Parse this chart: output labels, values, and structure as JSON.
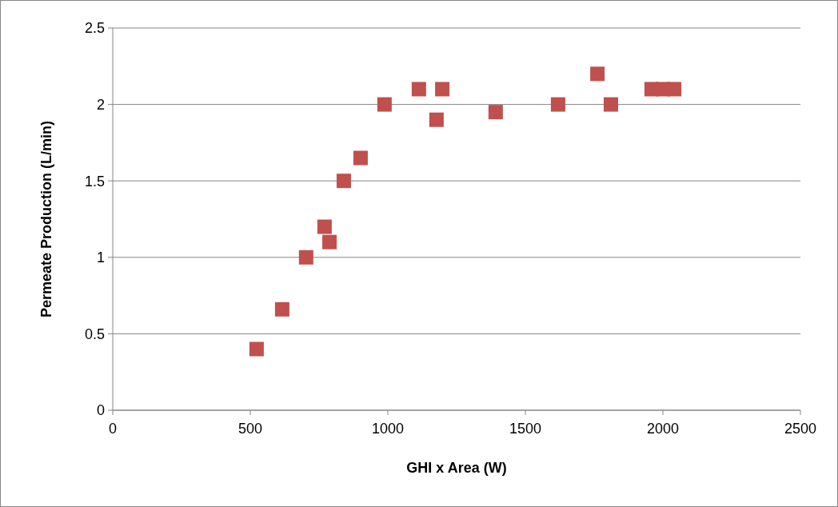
{
  "chart_data": {
    "type": "scatter",
    "xlabel": "GHI x Area (W)",
    "ylabel": "Permeate Production (L/min)",
    "x": [
      523,
      616,
      703,
      770,
      788,
      840,
      901,
      988,
      1113,
      1177,
      1198,
      1392,
      1619,
      1762,
      1811,
      1959,
      2000,
      2041
    ],
    "series": [
      {
        "color": "#c0504d",
        "values": [
          0.4,
          0.66,
          1.0,
          1.2,
          1.1,
          1.5,
          1.65,
          2.0,
          2.1,
          1.9,
          2.1,
          1.95,
          2.0,
          2.2,
          2.0,
          2.1,
          2.1,
          2.1
        ]
      }
    ],
    "xlim": [
      0,
      2500
    ],
    "xticks": [
      0,
      500,
      1000,
      1500,
      2000,
      2500
    ],
    "ylim": [
      0,
      2.5
    ],
    "yticks": [
      0,
      0.5,
      1,
      1.5,
      2,
      2.5
    ],
    "grid": "y",
    "marker": "square"
  }
}
